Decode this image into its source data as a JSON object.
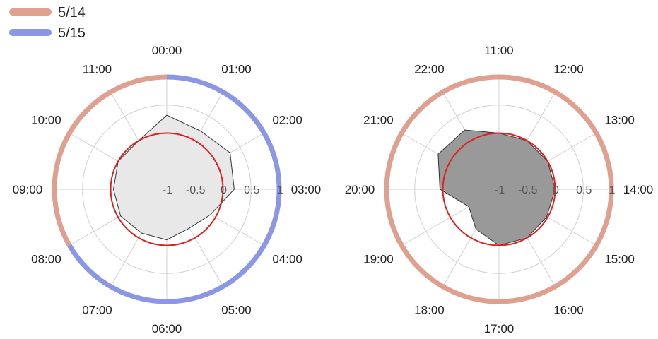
{
  "legend": {
    "items": [
      {
        "label": "5/14",
        "color": "#e0a090"
      },
      {
        "label": "5/15",
        "color": "#8c96e6"
      }
    ]
  },
  "chart_data": [
    {
      "type": "radar",
      "r_ticks": [
        "-1",
        "-0.5",
        "0",
        "0.5",
        "1"
      ],
      "r_range": [
        -1,
        1
      ],
      "angle_labels": [
        "00:00",
        "01:00",
        "02:00",
        "03:00",
        "04:00",
        "05:00",
        "06:00",
        "07:00",
        "08:00",
        "09:00",
        "10:00",
        "11:00"
      ],
      "reference_circle_value": 0,
      "reference_color": "#e02020",
      "fill_color": "#e8e8e8",
      "outer_ring": [
        {
          "from": "23:00",
          "to": "00:00",
          "date": "5/14",
          "color": "#e0a090"
        },
        {
          "from": "00:00",
          "to": "08:00",
          "date": "5/15",
          "color": "#8c96e6"
        },
        {
          "from": "08:00",
          "to": "12:00",
          "date": "5/14",
          "color": "#e0a090"
        }
      ],
      "values": [
        0.32,
        0.2,
        0.3,
        0.2,
        -0.1,
        -0.2,
        -0.1,
        -0.1,
        -0.05,
        -0.05,
        0.0,
        0.0
      ]
    },
    {
      "type": "radar",
      "r_ticks": [
        "-1",
        "-0.5",
        "0",
        "0.5",
        "1"
      ],
      "r_range": [
        -1,
        1
      ],
      "angle_labels": [
        "11:00",
        "12:00",
        "13:00",
        "14:00",
        "15:00",
        "16:00",
        "17:00",
        "18:00",
        "19:00",
        "20:00",
        "21:00",
        "22:00"
      ],
      "reference_circle_value": 0,
      "reference_color": "#e02020",
      "fill_color": "#999999",
      "outer_ring": [
        {
          "from": "11:00",
          "to": "11:00",
          "date": "5/14",
          "color": "#e0a090"
        }
      ],
      "values": [
        0.0,
        0.0,
        0.0,
        0.0,
        -0.02,
        0.0,
        0.0,
        -0.18,
        -0.38,
        0.05,
        0.25,
        0.22
      ]
    }
  ]
}
